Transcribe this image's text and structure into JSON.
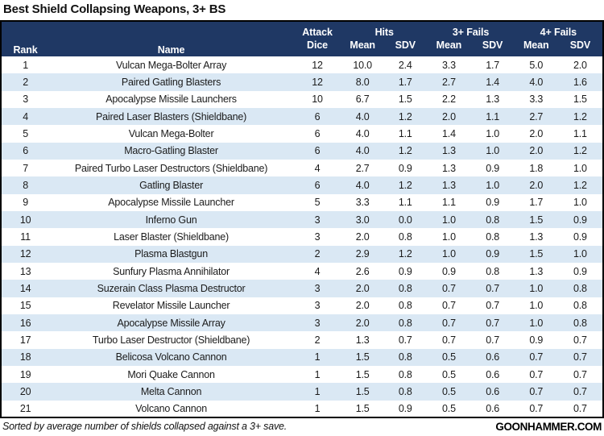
{
  "title": "Best Shield Collapsing Weapons, 3+ BS",
  "colors": {
    "header_bg": "#1F3864",
    "stripe": "#DAE8F4",
    "border": "#000000",
    "header_text": "#FFFFFF"
  },
  "table": {
    "headers": {
      "rank": "Rank",
      "name": "Name",
      "attack_line1": "Attack",
      "attack_line2": "Dice",
      "groups": [
        "Hits",
        "3+ Fails",
        "4+ Fails"
      ],
      "sub": [
        "Mean",
        "SDV",
        "Mean",
        "SDV",
        "Mean",
        "SDV"
      ]
    }
  },
  "chart_data": {
    "type": "table",
    "title": "Best Shield Collapsing Weapons, 3+ BS",
    "columns": [
      "Rank",
      "Name",
      "Attack Dice",
      "Hits Mean",
      "Hits SDV",
      "3+ Fails Mean",
      "3+ Fails SDV",
      "4+ Fails Mean",
      "4+ Fails SDV"
    ],
    "rows": [
      [
        "1",
        "Vulcan Mega-Bolter Array",
        "12",
        "10.0",
        "2.4",
        "3.3",
        "1.7",
        "5.0",
        "2.0"
      ],
      [
        "2",
        "Paired Gatling Blasters",
        "12",
        "8.0",
        "1.7",
        "2.7",
        "1.4",
        "4.0",
        "1.6"
      ],
      [
        "3",
        "Apocalypse Missile Launchers",
        "10",
        "6.7",
        "1.5",
        "2.2",
        "1.3",
        "3.3",
        "1.5"
      ],
      [
        "4",
        "Paired Laser Blasters (Shieldbane)",
        "6",
        "4.0",
        "1.2",
        "2.0",
        "1.1",
        "2.7",
        "1.2"
      ],
      [
        "5",
        "Vulcan Mega-Bolter",
        "6",
        "4.0",
        "1.1",
        "1.4",
        "1.0",
        "2.0",
        "1.1"
      ],
      [
        "6",
        "Macro-Gatling Blaster",
        "6",
        "4.0",
        "1.2",
        "1.3",
        "1.0",
        "2.0",
        "1.2"
      ],
      [
        "7",
        "Paired Turbo Laser Destructors (Shieldbane)",
        "4",
        "2.7",
        "0.9",
        "1.3",
        "0.9",
        "1.8",
        "1.0"
      ],
      [
        "8",
        "Gatling Blaster",
        "6",
        "4.0",
        "1.2",
        "1.3",
        "1.0",
        "2.0",
        "1.2"
      ],
      [
        "9",
        "Apocalypse Missile Launcher",
        "5",
        "3.3",
        "1.1",
        "1.1",
        "0.9",
        "1.7",
        "1.0"
      ],
      [
        "10",
        "Inferno Gun",
        "3",
        "3.0",
        "0.0",
        "1.0",
        "0.8",
        "1.5",
        "0.9"
      ],
      [
        "11",
        "Laser Blaster (Shieldbane)",
        "3",
        "2.0",
        "0.8",
        "1.0",
        "0.8",
        "1.3",
        "0.9"
      ],
      [
        "12",
        "Plasma Blastgun",
        "2",
        "2.9",
        "1.2",
        "1.0",
        "0.9",
        "1.5",
        "1.0"
      ],
      [
        "13",
        "Sunfury Plasma Annihilator",
        "4",
        "2.6",
        "0.9",
        "0.9",
        "0.8",
        "1.3",
        "0.9"
      ],
      [
        "14",
        "Suzerain Class Plasma Destructor",
        "3",
        "2.0",
        "0.8",
        "0.7",
        "0.7",
        "1.0",
        "0.8"
      ],
      [
        "15",
        "Revelator Missile Launcher",
        "3",
        "2.0",
        "0.8",
        "0.7",
        "0.7",
        "1.0",
        "0.8"
      ],
      [
        "16",
        "Apocalypse Missile Array",
        "3",
        "2.0",
        "0.8",
        "0.7",
        "0.7",
        "1.0",
        "0.8"
      ],
      [
        "17",
        "Turbo Laser Destructor (Shieldbane)",
        "2",
        "1.3",
        "0.7",
        "0.7",
        "0.7",
        "0.9",
        "0.7"
      ],
      [
        "18",
        "Belicosa Volcano Cannon",
        "1",
        "1.5",
        "0.8",
        "0.5",
        "0.6",
        "0.7",
        "0.7"
      ],
      [
        "19",
        "Mori Quake Cannon",
        "1",
        "1.5",
        "0.8",
        "0.5",
        "0.6",
        "0.7",
        "0.7"
      ],
      [
        "20",
        "Melta Cannon",
        "1",
        "1.5",
        "0.8",
        "0.5",
        "0.6",
        "0.7",
        "0.7"
      ],
      [
        "21",
        "Volcano Cannon",
        "1",
        "1.5",
        "0.9",
        "0.5",
        "0.6",
        "0.7",
        "0.7"
      ]
    ]
  },
  "footer": {
    "note": "Sorted by average number of shields collapsed against a 3+ save.",
    "brand": "GOONHAMMER.COM"
  }
}
